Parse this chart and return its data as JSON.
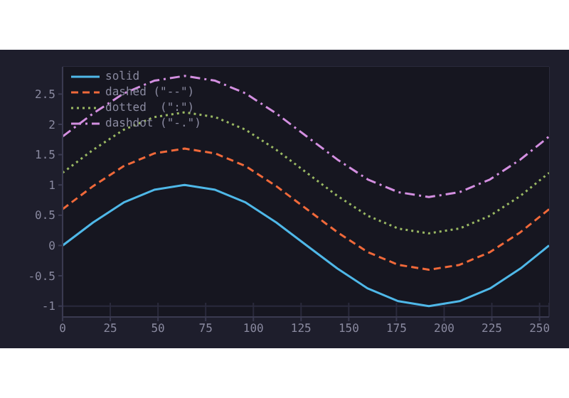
{
  "chart_data": {
    "type": "line",
    "x": [
      0,
      16,
      32,
      48,
      64,
      80,
      96,
      112,
      128,
      144,
      160,
      176,
      192,
      208,
      224,
      240,
      255
    ],
    "series": [
      {
        "name": "solid",
        "color": "#4fb8e8",
        "line_style": "solid",
        "values": [
          0,
          0.38,
          0.71,
          0.92,
          1,
          0.92,
          0.71,
          0.38,
          0,
          -0.38,
          -0.71,
          -0.92,
          -1,
          -0.92,
          -0.71,
          -0.38,
          0
        ]
      },
      {
        "name": "dashed (\"--\")",
        "color": "#f0693a",
        "line_style": "dashed",
        "values": [
          0.6,
          0.98,
          1.31,
          1.52,
          1.6,
          1.52,
          1.31,
          0.98,
          0.6,
          0.22,
          -0.11,
          -0.32,
          -0.4,
          -0.32,
          -0.11,
          0.22,
          0.6
        ]
      },
      {
        "name": "dotted  (\":\")",
        "color": "#9ab863",
        "line_style": "dotted",
        "values": [
          1.2,
          1.58,
          1.91,
          2.12,
          2.2,
          2.12,
          1.91,
          1.58,
          1.2,
          0.82,
          0.49,
          0.28,
          0.2,
          0.28,
          0.49,
          0.82,
          1.2
        ]
      },
      {
        "name": "dashdot (\"-.\")",
        "color": "#d38fe0",
        "line_style": "dashdot",
        "values": [
          1.8,
          2.18,
          2.51,
          2.72,
          2.8,
          2.72,
          2.51,
          2.18,
          1.8,
          1.42,
          1.09,
          0.88,
          0.8,
          0.88,
          1.09,
          1.42,
          1.8
        ]
      }
    ],
    "xlim": [
      0,
      255
    ],
    "xticks": [
      0,
      25,
      50,
      75,
      100,
      125,
      150,
      175,
      200,
      225,
      250
    ],
    "ylim": [
      -1.18,
      2.95
    ],
    "yticks": [
      -1,
      {
        "value": -0.5,
        "label": "-0.5"
      },
      0,
      {
        "value": 0.5,
        "label": "0.5"
      },
      1,
      {
        "value": 1.5,
        "label": "1.5"
      },
      2,
      {
        "value": 2.5,
        "label": "2.5"
      }
    ],
    "grid": true,
    "legend": "top left",
    "marker": "none"
  }
}
